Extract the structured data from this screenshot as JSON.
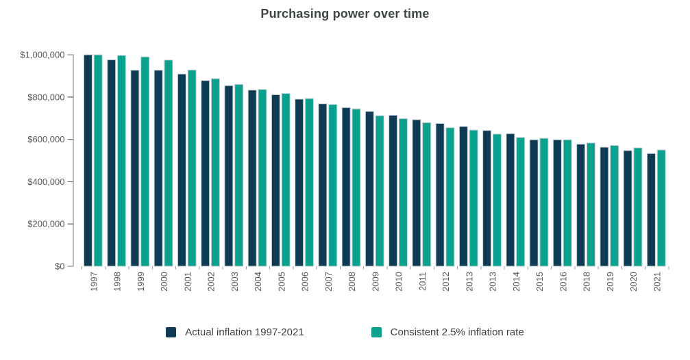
{
  "title": "Purchasing power over time",
  "chart_data": {
    "type": "bar",
    "title": "Purchasing power over time",
    "categories": [
      "1997",
      "1998",
      "1999",
      "2000",
      "2001",
      "2002",
      "2003",
      "2004",
      "2005",
      "2006",
      "2007",
      "2008",
      "2009",
      "2010",
      "2011",
      "2012",
      "2013",
      "2013",
      "2014",
      "2015",
      "2016",
      "2018",
      "2019",
      "2020",
      "2021"
    ],
    "series": [
      {
        "name": "Actual inflation 1997-2021",
        "color": "#0e3a53",
        "values": [
          1000000,
          976000,
          927000,
          927000,
          909000,
          878000,
          854000,
          833000,
          811000,
          790000,
          768000,
          750000,
          732000,
          714000,
          693000,
          675000,
          661000,
          642000,
          627000,
          598000,
          598000,
          577000,
          563000,
          547000,
          533000
        ]
      },
      {
        "name": "Consistent 2.5% inflation rate",
        "color": "#0aa18f",
        "values": [
          1000000,
          997000,
          990000,
          975000,
          928000,
          887000,
          860000,
          836000,
          817000,
          793000,
          765000,
          744000,
          712000,
          698000,
          679000,
          655000,
          644000,
          625000,
          609000,
          605000,
          598000,
          583000,
          571000,
          560000,
          550000
        ]
      }
    ],
    "xlabel": "",
    "ylabel": "",
    "ylim": [
      0,
      1000000
    ],
    "y_ticks": [
      0,
      200000,
      400000,
      600000,
      800000,
      1000000
    ],
    "y_tick_labels": [
      "$0",
      "$200,000",
      "$400,000",
      "$600,000",
      "$800,000",
      "$1,000,000"
    ],
    "grid": false,
    "legend_position": "bottom",
    "style": {
      "bar_outline_color": "#c7d0d7",
      "axis_color": "#6f7375",
      "x_tick_color": "#9aa0a4",
      "tick_label_color": "#55595c",
      "title_color": "#3f4447"
    }
  },
  "legend": {
    "items": [
      {
        "label": "Actual inflation 1997-2021",
        "color": "#0e3a53"
      },
      {
        "label": "Consistent 2.5% inflation rate",
        "color": "#0aa18f"
      }
    ]
  }
}
